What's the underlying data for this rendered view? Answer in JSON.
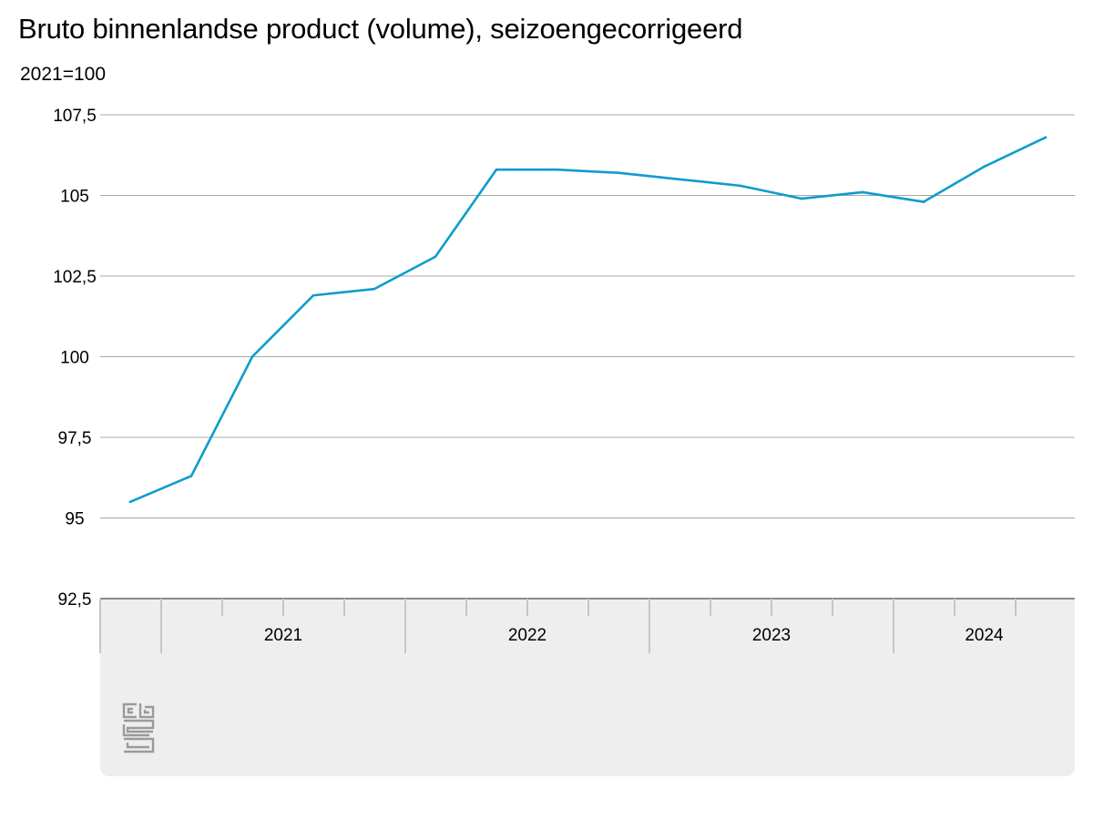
{
  "colors": {
    "line": "#0F9CCC",
    "grid": "#A8A8A8",
    "panel": "#EEEEEE",
    "axis": "#666666"
  },
  "chart_data": {
    "type": "line",
    "title": "Bruto binnenlandse product (volume), seizoengecorrigeerd",
    "subtitle": "2021=100",
    "xlabel": "",
    "ylabel": "",
    "ylim": [
      92.5,
      107.5
    ],
    "y_ticks": [
      92.5,
      95,
      97.5,
      100,
      102.5,
      105,
      107.5
    ],
    "y_tick_labels": [
      "92,5",
      "95",
      "97,5",
      "100",
      "102,5",
      "105",
      "107,5"
    ],
    "x_groups": [
      "2021",
      "2022",
      "2023",
      "2024"
    ],
    "x": [
      "2020-Q4",
      "2021-Q1",
      "2021-Q2",
      "2021-Q3",
      "2021-Q4",
      "2022-Q1",
      "2022-Q2",
      "2022-Q3",
      "2022-Q4",
      "2023-Q1",
      "2023-Q2",
      "2023-Q3",
      "2023-Q4",
      "2024-Q1",
      "2024-Q2",
      "2024-Q3"
    ],
    "series": [
      {
        "values": [
          95.5,
          96.3,
          100.0,
          101.9,
          102.1,
          103.1,
          105.8,
          105.8,
          105.7,
          105.5,
          105.3,
          104.9,
          105.1,
          104.8,
          105.9,
          106.8
        ]
      }
    ],
    "grid": true,
    "legend": "none"
  },
  "logo": {
    "text": "cbs"
  }
}
